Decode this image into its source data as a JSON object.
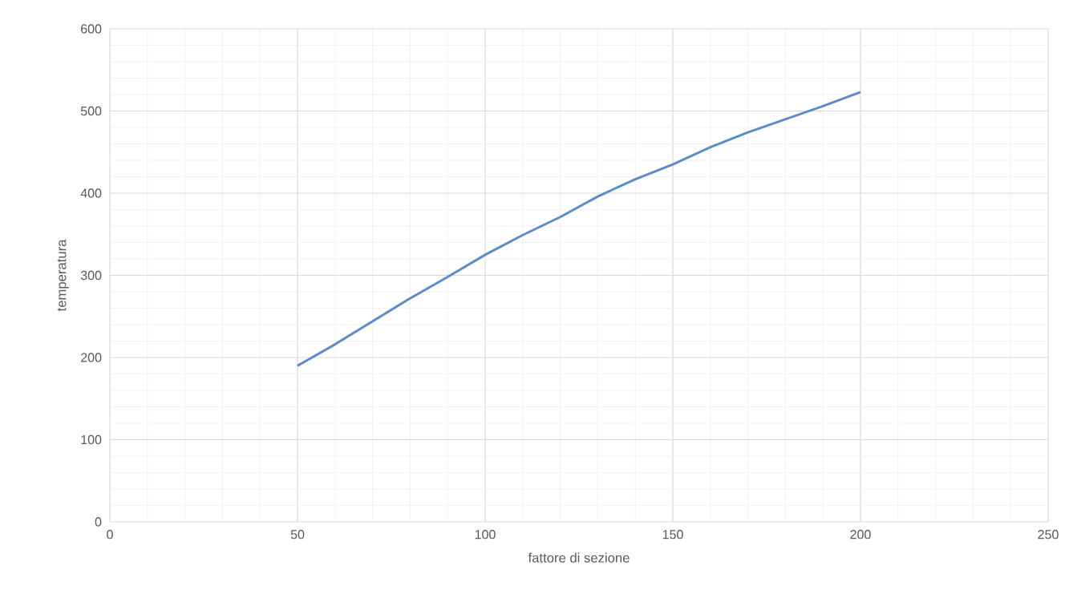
{
  "chart_data": {
    "type": "line",
    "xlabel": "fattore di sezione",
    "ylabel": "temperatura",
    "x": [
      50,
      60,
      70,
      80,
      90,
      100,
      110,
      120,
      130,
      140,
      150,
      160,
      170,
      180,
      190,
      200
    ],
    "series": [
      {
        "color": "#5b8bc9",
        "values": [
          190,
          216,
          244,
          272,
          298,
          325,
          349,
          371,
          396,
          417,
          435,
          456,
          474,
          490,
          506,
          523
        ]
      }
    ],
    "xlim": [
      0,
      250
    ],
    "xticks": [
      0,
      50,
      100,
      150,
      200,
      250
    ],
    "ylim": [
      0,
      600
    ],
    "yticks": [
      0,
      100,
      200,
      300,
      400,
      500,
      600
    ],
    "grid": true
  }
}
